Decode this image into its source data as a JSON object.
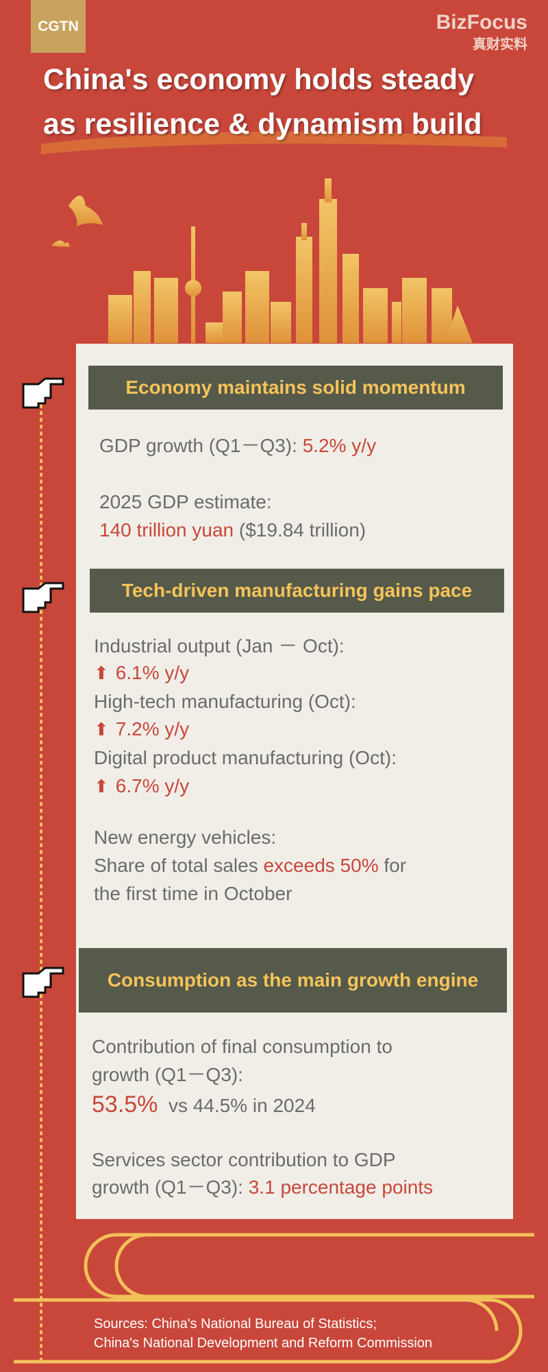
{
  "header": {
    "logo": "CGTN",
    "brand": "BizFocus",
    "brand_cn": "真财实料",
    "title_lines": [
      "China's economy holds steady",
      "as resilience & dynamism build"
    ]
  },
  "sections": [
    {
      "heading": "Economy maintains solid momentum",
      "lines": [
        [
          {
            "text": "GDP growth (Q1－Q3): "
          },
          {
            "text": "5.2% y/y",
            "accent": true
          }
        ],
        [
          {
            "text": "2025 GDP estimate:"
          }
        ],
        [
          {
            "text": "140 trillion yuan",
            "accent": true
          },
          {
            "text": " ($19.84 trillion)"
          }
        ]
      ]
    },
    {
      "heading": "Tech-driven manufacturing gains pace",
      "lines": [
        [
          {
            "text": "Industrial output (Jan － Oct):"
          }
        ],
        [
          {
            "text": "6.1% y/y",
            "accent": true
          }
        ],
        [
          {
            "text": "High-tech manufacturing (Oct):"
          }
        ],
        [
          {
            "text": "7.2% y/y",
            "accent": true
          }
        ],
        [
          {
            "text": "Digital product manufacturing (Oct):"
          }
        ],
        [
          {
            "text": "6.7% y/y",
            "accent": true
          }
        ],
        [
          {
            "text": "New energy vehicles:"
          }
        ],
        [
          {
            "text": "Share of total sales "
          },
          {
            "text": "exceeds 50%",
            "accent": true
          },
          {
            "text": " for"
          }
        ],
        [
          {
            "text": "the first time in October"
          }
        ]
      ]
    },
    {
      "heading": "Consumption as the main growth engine",
      "lines": [
        [
          {
            "text": "Contribution of final consumption to"
          }
        ],
        [
          {
            "text": "growth (Q1－Q3):"
          }
        ],
        [
          {
            "text": "53.5%",
            "accent": true
          },
          {
            "text": "  vs 44.5% in 2024"
          }
        ],
        [
          {
            "text": "Services sector contribution to GDP"
          }
        ],
        [
          {
            "text": "growth (Q1－Q3): "
          },
          {
            "text": "3.1 percentage points",
            "accent": true
          }
        ]
      ]
    }
  ],
  "footer": {
    "sources": [
      "Sources: China's National Bureau of Statistics;",
      "China's National Development and Reform Commission"
    ]
  }
}
